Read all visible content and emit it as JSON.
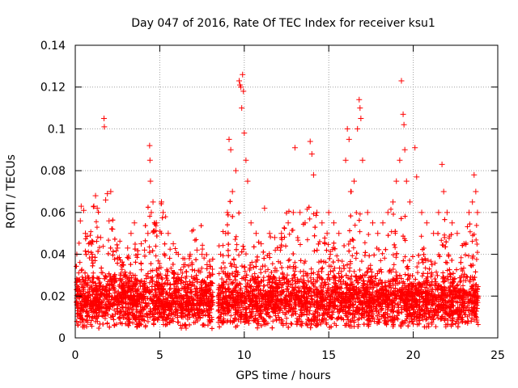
{
  "chart_data": {
    "type": "scatter",
    "title": "Day 047 of 2016, Rate Of TEC Index for receiver ksu1",
    "xlabel": "GPS time / hours",
    "ylabel": "ROTI / TECUs",
    "xlim": [
      0,
      25
    ],
    "ylim": [
      0,
      0.14
    ],
    "xticks": [
      0,
      5,
      10,
      15,
      20,
      25
    ],
    "xtick_labels": [
      "0",
      "5",
      "10",
      "15",
      "20",
      "25"
    ],
    "yticks": [
      0,
      0.02,
      0.04,
      0.06,
      0.08,
      0.1,
      0.12,
      0.14
    ],
    "ytick_labels": [
      "0",
      "0.02",
      "0.04",
      "0.06",
      "0.08",
      "0.1",
      "0.12",
      "0.14"
    ],
    "grid": true,
    "marker": "+",
    "color": "#ff0000",
    "data_gap_hours": [
      8.15,
      8.45
    ],
    "series": [
      {
        "points": [
          [
            0.1,
            0.019
          ],
          [
            0.2,
            0.024
          ],
          [
            0.3,
            0.056
          ],
          [
            0.35,
            0.063
          ],
          [
            0.5,
            0.061
          ],
          [
            0.6,
            0.05
          ],
          [
            0.8,
            0.045
          ],
          [
            1.0,
            0.04
          ],
          [
            1.1,
            0.063
          ],
          [
            1.2,
            0.068
          ],
          [
            1.3,
            0.062
          ],
          [
            1.5,
            0.048
          ],
          [
            1.7,
            0.105
          ],
          [
            1.72,
            0.101
          ],
          [
            1.8,
            0.066
          ],
          [
            1.9,
            0.069
          ],
          [
            2.0,
            0.056
          ],
          [
            2.1,
            0.07
          ],
          [
            2.2,
            0.052
          ],
          [
            2.5,
            0.043
          ],
          [
            2.8,
            0.035
          ],
          [
            3.1,
            0.043
          ],
          [
            3.3,
            0.05
          ],
          [
            3.5,
            0.055
          ],
          [
            3.7,
            0.04
          ],
          [
            3.9,
            0.045
          ],
          [
            4.1,
            0.042
          ],
          [
            4.3,
            0.05
          ],
          [
            4.4,
            0.092
          ],
          [
            4.42,
            0.085
          ],
          [
            4.45,
            0.075
          ],
          [
            4.5,
            0.06
          ],
          [
            4.6,
            0.065
          ],
          [
            4.8,
            0.055
          ],
          [
            5.1,
            0.065
          ],
          [
            5.2,
            0.06
          ],
          [
            5.5,
            0.05
          ],
          [
            5.8,
            0.045
          ],
          [
            6.1,
            0.04
          ],
          [
            6.5,
            0.035
          ],
          [
            6.8,
            0.04
          ],
          [
            7.2,
            0.042
          ],
          [
            7.5,
            0.04
          ],
          [
            7.8,
            0.035
          ],
          [
            8.0,
            0.03
          ],
          [
            8.6,
            0.04
          ],
          [
            8.9,
            0.05
          ],
          [
            9.0,
            0.06
          ],
          [
            9.1,
            0.095
          ],
          [
            9.2,
            0.09
          ],
          [
            9.3,
            0.07
          ],
          [
            9.5,
            0.08
          ],
          [
            9.7,
            0.123
          ],
          [
            9.75,
            0.121
          ],
          [
            9.8,
            0.12
          ],
          [
            9.85,
            0.11
          ],
          [
            9.9,
            0.126
          ],
          [
            9.95,
            0.118
          ],
          [
            10.0,
            0.098
          ],
          [
            10.1,
            0.085
          ],
          [
            10.2,
            0.075
          ],
          [
            10.4,
            0.055
          ],
          [
            10.7,
            0.05
          ],
          [
            11.0,
            0.045
          ],
          [
            11.2,
            0.062
          ],
          [
            11.5,
            0.05
          ],
          [
            11.8,
            0.048
          ],
          [
            12.2,
            0.05
          ],
          [
            12.6,
            0.055
          ],
          [
            12.9,
            0.06
          ],
          [
            13.0,
            0.091
          ],
          [
            13.3,
            0.06
          ],
          [
            13.6,
            0.055
          ],
          [
            13.9,
            0.094
          ],
          [
            14.0,
            0.088
          ],
          [
            14.1,
            0.078
          ],
          [
            14.3,
            0.06
          ],
          [
            14.6,
            0.055
          ],
          [
            14.9,
            0.05
          ],
          [
            15.0,
            0.06
          ],
          [
            15.3,
            0.055
          ],
          [
            15.6,
            0.05
          ],
          [
            16.0,
            0.085
          ],
          [
            16.1,
            0.1
          ],
          [
            16.2,
            0.095
          ],
          [
            16.3,
            0.07
          ],
          [
            16.5,
            0.075
          ],
          [
            16.7,
            0.1
          ],
          [
            16.8,
            0.114
          ],
          [
            16.85,
            0.11
          ],
          [
            16.9,
            0.105
          ],
          [
            17.0,
            0.085
          ],
          [
            17.3,
            0.06
          ],
          [
            17.6,
            0.055
          ],
          [
            17.9,
            0.05
          ],
          [
            18.2,
            0.055
          ],
          [
            18.5,
            0.06
          ],
          [
            18.8,
            0.065
          ],
          [
            19.0,
            0.075
          ],
          [
            19.2,
            0.085
          ],
          [
            19.3,
            0.123
          ],
          [
            19.4,
            0.107
          ],
          [
            19.45,
            0.102
          ],
          [
            19.5,
            0.09
          ],
          [
            19.6,
            0.075
          ],
          [
            19.8,
            0.065
          ],
          [
            20.1,
            0.091
          ],
          [
            20.2,
            0.077
          ],
          [
            20.5,
            0.06
          ],
          [
            20.8,
            0.055
          ],
          [
            21.2,
            0.05
          ],
          [
            21.5,
            0.06
          ],
          [
            21.7,
            0.083
          ],
          [
            21.8,
            0.07
          ],
          [
            22.0,
            0.06
          ],
          [
            22.3,
            0.055
          ],
          [
            22.6,
            0.05
          ],
          [
            23.0,
            0.045
          ],
          [
            23.3,
            0.06
          ],
          [
            23.5,
            0.065
          ],
          [
            23.6,
            0.078
          ],
          [
            23.7,
            0.07
          ],
          [
            23.8,
            0.06
          ]
        ]
      }
    ]
  }
}
